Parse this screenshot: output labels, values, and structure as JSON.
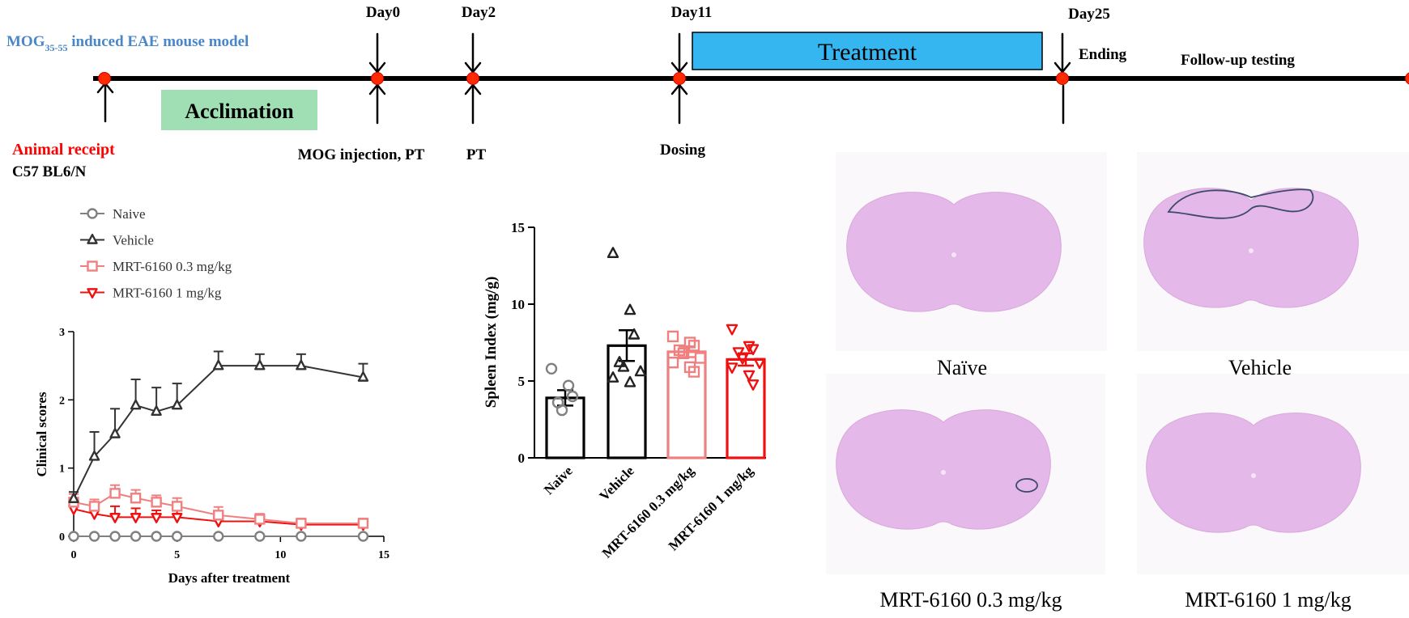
{
  "timeline": {
    "model_prefix": "MOG",
    "model_sub": "35-55",
    "model_suffix": " induced EAE mouse model",
    "model_color": "#4a86c8",
    "days": [
      "Day0",
      "Day2",
      "Day11",
      "Day25"
    ],
    "acclimation_label": "Acclimation",
    "acclimation_color": "#9fdfb3",
    "treatment_label": "Treatment",
    "treatment_color": "#35b6f0",
    "ending_label": "Ending",
    "followup_label": "Follow-up testing",
    "animal_receipt": "Animal receipt",
    "animal_receipt_color": "#ff0000",
    "strain": "C57 BL6/N",
    "mog_injection": "MOG injection, PT",
    "pt_label": "PT",
    "dosing_label": "Dosing",
    "node_color": "#ff2a00"
  },
  "line_chart": {
    "legend": [
      "Naive",
      "Vehicle",
      "MRT-6160 0.3 mg/kg",
      "MRT-6160 1 mg/kg"
    ],
    "xlabel": "Days after treatment",
    "ylabel": "Clinical scores",
    "xticks": [
      "0",
      "5",
      "10",
      "15"
    ],
    "yticks": [
      "0",
      "1",
      "2",
      "3"
    ]
  },
  "bar_chart": {
    "ylabel": "Spleen Index (mg/g)",
    "yticks": [
      "0",
      "5",
      "10",
      "15"
    ],
    "categories": [
      "Naive",
      "Vehicle",
      "MRT-6160 0.3 mg/kg",
      "MRT-6160 1 mg/kg"
    ]
  },
  "histology": {
    "labels": [
      "Naïve",
      "Vehicle",
      "MRT-6160 0.3 mg/kg",
      "MRT-6160 1 mg/kg"
    ],
    "tissue_color": "#e4b8e8",
    "lesion_outline_color": "#3d4a6a"
  },
  "chart_data": [
    {
      "type": "line",
      "xlabel": "Days after treatment",
      "ylabel": "Clinical scores",
      "xlim": [
        0,
        15
      ],
      "ylim": [
        0,
        3
      ],
      "series": [
        {
          "name": "Naive",
          "color": "#808080",
          "marker": "circle",
          "x": [
            0,
            1,
            2,
            3,
            4,
            5,
            7,
            9,
            11,
            14
          ],
          "y": [
            0,
            0,
            0,
            0,
            0,
            0,
            0,
            0,
            0,
            0
          ],
          "err": [
            0,
            0,
            0,
            0,
            0,
            0,
            0,
            0,
            0,
            0
          ]
        },
        {
          "name": "Vehicle",
          "color": "#333333",
          "marker": "triangle-up",
          "x": [
            0,
            1,
            2,
            3,
            4,
            5,
            7,
            9,
            11,
            14
          ],
          "y": [
            0.55,
            1.17,
            1.5,
            1.92,
            1.83,
            1.92,
            2.5,
            2.5,
            2.5,
            2.33
          ],
          "err": [
            0.1,
            0.36,
            0.37,
            0.38,
            0.35,
            0.32,
            0.21,
            0.17,
            0.17,
            0.2
          ]
        },
        {
          "name": "MRT-6160 0.3 mg/kg",
          "color": "#f08080",
          "marker": "square",
          "x": [
            0,
            1,
            2,
            3,
            4,
            5,
            7,
            9,
            11,
            14
          ],
          "y": [
            0.5,
            0.44,
            0.63,
            0.56,
            0.5,
            0.44,
            0.31,
            0.25,
            0.19,
            0.19
          ],
          "err": [
            0.12,
            0.1,
            0.12,
            0.12,
            0.1,
            0.12,
            0.12,
            0.08,
            0.07,
            0.07
          ]
        },
        {
          "name": "MRT-6160 1 mg/kg",
          "color": "#ee1111",
          "marker": "triangle-down",
          "x": [
            0,
            1,
            2,
            3,
            4,
            5,
            7,
            9,
            11,
            14
          ],
          "y": [
            0.4,
            0.33,
            0.28,
            0.28,
            0.28,
            0.28,
            0.22,
            0.22,
            0.17,
            0.17
          ],
          "err": [
            0.1,
            0.09,
            0.16,
            0.13,
            0.1,
            0.1,
            0.1,
            0.1,
            0.07,
            0.07
          ]
        }
      ]
    },
    {
      "type": "bar",
      "categories": [
        "Naive",
        "Vehicle",
        "MRT-6160 0.3 mg/kg",
        "MRT-6160 1 mg/kg"
      ],
      "ylabel": "Spleen Index (mg/g)",
      "ylim": [
        0,
        15
      ],
      "values": [
        3.9,
        7.3,
        6.9,
        6.4
      ],
      "err": [
        0.5,
        1.0,
        0.35,
        0.4
      ],
      "colors": [
        "#000000",
        "#000000",
        "#f08080",
        "#ee1111"
      ],
      "markers": [
        "circle",
        "triangle-up",
        "square",
        "triangle-down"
      ],
      "points": [
        [
          5.8,
          4.7,
          4.0,
          3.6,
          3.1
        ],
        [
          13.3,
          9.6,
          8.0,
          6.2,
          5.9,
          5.6,
          5.2,
          4.9
        ],
        [
          7.9,
          7.5,
          7.3,
          7.0,
          6.8,
          6.5,
          6.2,
          5.9,
          5.6
        ],
        [
          8.4,
          7.3,
          7.1,
          6.9,
          6.5,
          6.2,
          5.9,
          5.4,
          4.8
        ]
      ]
    }
  ]
}
